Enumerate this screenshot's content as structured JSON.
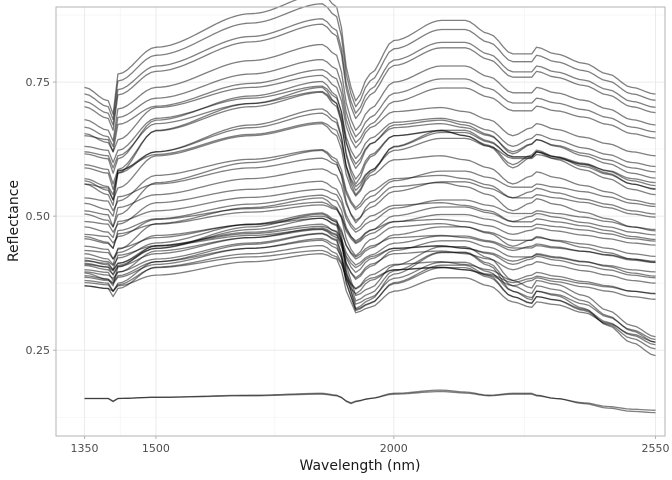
{
  "chart_data": {
    "type": "line",
    "title": "",
    "xlabel": "Wavelength (nm)",
    "ylabel": "Reflectance",
    "xlim": [
      1290,
      2570
    ],
    "ylim": [
      0.09,
      0.89
    ],
    "xticks": [
      1350,
      1500,
      2000,
      2550
    ],
    "xtick_labels": [
      "1350",
      "1500",
      "2000",
      "2550"
    ],
    "yticks": [
      0.25,
      0.5,
      0.75
    ],
    "ytick_labels": [
      "0.25",
      "0.50",
      "0.75"
    ],
    "grid": true,
    "legend": "none",
    "line_color": "#000000",
    "line_opacity": 0.5,
    "knot_wavelengths": [
      1350,
      1400,
      1410,
      1420,
      1500,
      1700,
      1850,
      1880,
      1910,
      1920,
      1950,
      2000,
      2100,
      2150,
      2200,
      2250,
      2290,
      2300,
      2340,
      2400,
      2450,
      2500,
      2550
    ],
    "shape_families": [
      [
        0.2,
        0.15,
        0.0,
        0.15,
        0.55,
        0.8,
        0.95,
        0.8,
        0.15,
        0.05,
        0.3,
        0.5,
        0.55,
        0.5,
        0.4,
        0.2,
        0.3,
        0.35,
        0.28,
        0.18,
        0.1,
        0.0,
        -0.05
      ],
      [
        0.2,
        0.1,
        0.0,
        0.3,
        0.5,
        0.75,
        0.9,
        0.8,
        0.2,
        0.1,
        0.3,
        0.55,
        0.7,
        0.7,
        0.6,
        0.45,
        0.45,
        0.5,
        0.45,
        0.38,
        0.3,
        0.2,
        0.15
      ],
      [
        0.3,
        0.25,
        0.2,
        0.3,
        0.5,
        0.75,
        0.9,
        0.8,
        0.0,
        -0.2,
        -0.1,
        0.2,
        0.45,
        0.45,
        0.3,
        0.0,
        -0.1,
        0.0,
        -0.05,
        -0.2,
        -0.4,
        -0.6,
        -0.75
      ],
      [
        0.0,
        0.0,
        -0.05,
        0.0,
        0.02,
        0.05,
        0.08,
        0.05,
        -0.08,
        -0.05,
        0.0,
        0.08,
        0.13,
        0.1,
        0.05,
        0.08,
        0.08,
        0.05,
        0.0,
        -0.08,
        -0.15,
        -0.2,
        -0.22
      ]
    ],
    "series": [
      {
        "base": 0.69,
        "amp": 0.25,
        "shape": 1
      },
      {
        "base": 0.68,
        "amp": 0.24,
        "shape": 1
      },
      {
        "base": 0.67,
        "amp": 0.22,
        "shape": 1
      },
      {
        "base": 0.66,
        "amp": 0.22,
        "shape": 1
      },
      {
        "base": 0.64,
        "amp": 0.2,
        "shape": 1
      },
      {
        "base": 0.63,
        "amp": 0.18,
        "shape": 1
      },
      {
        "base": 0.62,
        "amp": 0.17,
        "shape": 1
      },
      {
        "base": 0.62,
        "amp": 0.15,
        "shape": 0
      },
      {
        "base": 0.6,
        "amp": 0.15,
        "shape": 0
      },
      {
        "base": 0.59,
        "amp": 0.15,
        "shape": 0
      },
      {
        "base": 0.58,
        "amp": 0.18,
        "shape": 0
      },
      {
        "base": 0.56,
        "amp": 0.18,
        "shape": 0
      },
      {
        "base": 0.55,
        "amp": 0.2,
        "shape": 0
      },
      {
        "base": 0.54,
        "amp": 0.15,
        "shape": 1
      },
      {
        "base": 0.53,
        "amp": 0.18,
        "shape": 1
      },
      {
        "base": 0.53,
        "amp": 0.15,
        "shape": 0
      },
      {
        "base": 0.52,
        "amp": 0.2,
        "shape": 1
      },
      {
        "base": 0.51,
        "amp": 0.12,
        "shape": 0
      },
      {
        "base": 0.5,
        "amp": 0.12,
        "shape": 1
      },
      {
        "base": 0.48,
        "amp": 0.15,
        "shape": 0
      },
      {
        "base": 0.48,
        "amp": 0.12,
        "shape": 1
      },
      {
        "base": 0.47,
        "amp": 0.1,
        "shape": 0
      },
      {
        "base": 0.46,
        "amp": 0.1,
        "shape": 1
      },
      {
        "base": 0.45,
        "amp": 0.08,
        "shape": 0
      },
      {
        "base": 0.44,
        "amp": 0.11,
        "shape": 1
      },
      {
        "base": 0.42,
        "amp": 0.12,
        "shape": 0
      },
      {
        "base": 0.41,
        "amp": 0.1,
        "shape": 1
      },
      {
        "base": 0.4,
        "amp": 0.08,
        "shape": 0
      },
      {
        "base": 0.4,
        "amp": 0.09,
        "shape": 1
      },
      {
        "base": 0.39,
        "amp": 0.1,
        "shape": 0
      },
      {
        "base": 0.38,
        "amp": 0.1,
        "shape": 0
      },
      {
        "base": 0.37,
        "amp": 0.12,
        "shape": 1
      },
      {
        "base": 0.36,
        "amp": 0.1,
        "shape": 0
      },
      {
        "base": 0.35,
        "amp": 0.12,
        "shape": 2
      },
      {
        "base": 0.36,
        "amp": 0.12,
        "shape": 2
      },
      {
        "base": 0.34,
        "amp": 0.1,
        "shape": 2
      },
      {
        "base": 0.37,
        "amp": 0.14,
        "shape": 2
      },
      {
        "base": 0.36,
        "amp": 0.16,
        "shape": 2
      },
      {
        "base": 0.38,
        "amp": 0.14,
        "shape": 2
      },
      {
        "base": 0.35,
        "amp": 0.13,
        "shape": 2
      },
      {
        "base": 0.36,
        "amp": 0.08,
        "shape": 0
      },
      {
        "base": 0.35,
        "amp": 0.1,
        "shape": 0
      },
      {
        "base": 0.42,
        "amp": 0.08,
        "shape": 0
      },
      {
        "base": 0.44,
        "amp": 0.09,
        "shape": 1
      },
      {
        "base": 0.16,
        "amp": 0.12,
        "shape": 3
      },
      {
        "base": 0.16,
        "amp": 0.1,
        "shape": 3
      }
    ]
  }
}
